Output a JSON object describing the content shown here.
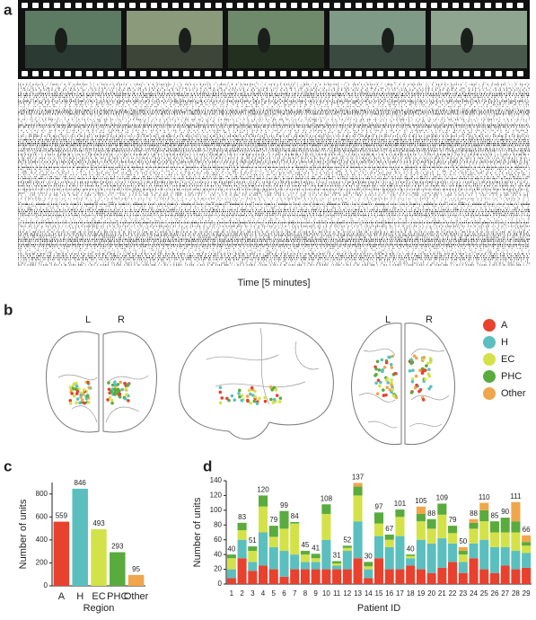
{
  "panel_labels": [
    "a",
    "b",
    "c",
    "d"
  ],
  "raster": {
    "xlabel": "Time [5 minutes]"
  },
  "brain": {
    "side_labels": [
      "L",
      "R",
      "L",
      "R"
    ],
    "legend": [
      {
        "name": "A",
        "color": "#e8412e"
      },
      {
        "name": "H",
        "color": "#5bbfbf"
      },
      {
        "name": "EC",
        "color": "#d4e24a"
      },
      {
        "name": "PHC",
        "color": "#5aab3e"
      },
      {
        "name": "Other",
        "color": "#f0a64a"
      }
    ]
  },
  "chart_data": [
    {
      "type": "bar",
      "categories": [
        "A",
        "H",
        "EC",
        "PHC",
        "Other"
      ],
      "values": [
        559,
        846,
        493,
        293,
        95
      ],
      "colors": [
        "#e8412e",
        "#5bbfbf",
        "#d4e24a",
        "#5aab3e",
        "#f0a64a"
      ],
      "ylim": [
        0,
        900
      ],
      "yticks": [
        0,
        200,
        400,
        600,
        800
      ],
      "xlabel": "Region",
      "ylabel": "Number of units"
    },
    {
      "type": "stacked_bar",
      "categories": [
        "1",
        "2",
        "3",
        "4",
        "5",
        "6",
        "7",
        "8",
        "9",
        "10",
        "11",
        "12",
        "13",
        "14",
        "15",
        "16",
        "17",
        "18",
        "19",
        "20",
        "21",
        "22",
        "23",
        "24",
        "25",
        "26",
        "27",
        "28",
        "29"
      ],
      "series": [
        {
          "name": "A",
          "color": "#e8412e",
          "values": [
            8,
            35,
            18,
            25,
            20,
            10,
            20,
            20,
            20,
            20,
            20,
            20,
            35,
            8,
            35,
            20,
            20,
            25,
            20,
            15,
            22,
            30,
            15,
            35,
            20,
            15,
            25,
            20,
            22
          ]
        },
        {
          "name": "H",
          "color": "#5bbfbf",
          "values": [
            12,
            25,
            12,
            45,
            30,
            35,
            20,
            10,
            10,
            40,
            5,
            25,
            50,
            12,
            30,
            30,
            45,
            10,
            40,
            40,
            40,
            25,
            15,
            20,
            40,
            35,
            25,
            25,
            20
          ]
        },
        {
          "name": "EC",
          "color": "#d4e24a",
          "values": [
            15,
            13,
            15,
            35,
            14,
            30,
            42,
            10,
            5,
            35,
            3,
            4,
            35,
            4,
            17,
            10,
            26,
            3,
            25,
            20,
            32,
            14,
            10,
            20,
            25,
            20,
            20,
            25,
            10
          ]
        },
        {
          "name": "PHC",
          "color": "#5aab3e",
          "values": [
            5,
            10,
            6,
            15,
            15,
            24,
            2,
            5,
            6,
            13,
            3,
            3,
            12,
            6,
            15,
            7,
            10,
            2,
            10,
            13,
            15,
            10,
            5,
            8,
            15,
            15,
            20,
            15,
            5
          ]
        },
        {
          "name": "Other",
          "color": "#f0a64a",
          "values": [
            0,
            0,
            0,
            0,
            0,
            0,
            0,
            0,
            0,
            0,
            0,
            0,
            5,
            0,
            0,
            0,
            0,
            0,
            10,
            0,
            0,
            0,
            5,
            5,
            10,
            0,
            0,
            26,
            9
          ]
        }
      ],
      "totals": [
        40,
        83,
        51,
        120,
        79,
        99,
        84,
        45,
        41,
        108,
        31,
        52,
        137,
        30,
        97,
        67,
        101,
        40,
        105,
        88,
        109,
        79,
        50,
        88,
        110,
        85,
        90,
        111,
        66
      ],
      "ylim": [
        0,
        140
      ],
      "yticks": [
        0,
        20,
        40,
        60,
        80,
        100,
        120,
        140
      ],
      "xlabel": "Patient ID",
      "ylabel": "Number of units"
    }
  ]
}
